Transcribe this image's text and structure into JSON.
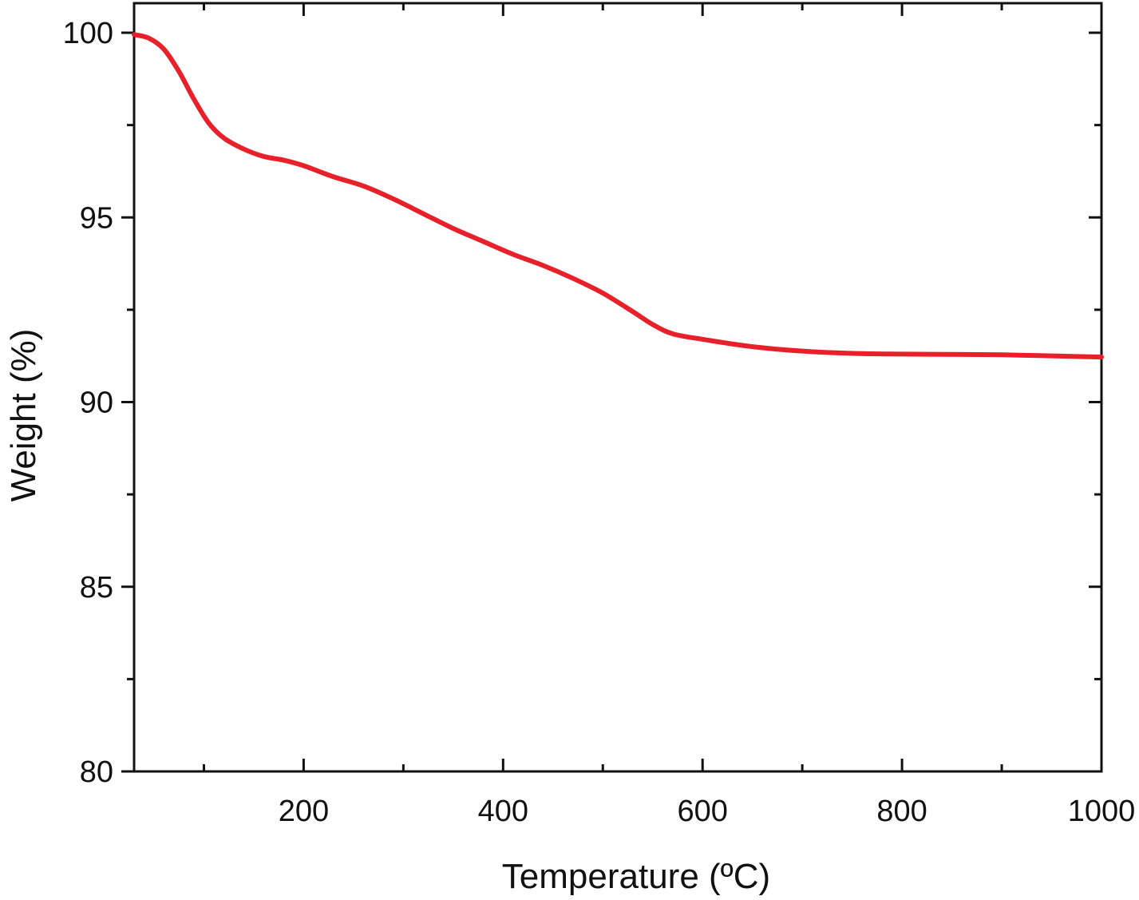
{
  "chart_data": {
    "type": "line",
    "title": "",
    "xlabel": "Temperature (ºC)",
    "ylabel": "Weight (%)",
    "xlim": [
      30,
      1000
    ],
    "ylim": [
      80,
      100.8
    ],
    "x_ticks": [
      200,
      400,
      600,
      800,
      1000
    ],
    "x_tick_labels": [
      "200",
      "400",
      "600",
      "800",
      "1000"
    ],
    "x_minor_ticks": [
      100,
      300,
      500,
      700,
      900
    ],
    "y_ticks": [
      80,
      85,
      90,
      95,
      100
    ],
    "y_tick_labels": [
      "80",
      "85",
      "90",
      "95",
      "100"
    ],
    "y_minor_ticks": [
      82.5,
      87.5,
      92.5,
      97.5
    ],
    "grid": false,
    "legend": "none",
    "series": [
      {
        "color": "#e8202a",
        "x": [
          30,
          45,
          60,
          75,
          90,
          105,
          120,
          140,
          160,
          180,
          200,
          230,
          260,
          290,
          320,
          350,
          380,
          410,
          440,
          470,
          500,
          530,
          550,
          570,
          600,
          650,
          700,
          750,
          800,
          900,
          1000
        ],
        "y": [
          99.95,
          99.85,
          99.55,
          98.95,
          98.2,
          97.55,
          97.15,
          96.85,
          96.65,
          96.55,
          96.4,
          96.1,
          95.85,
          95.5,
          95.1,
          94.7,
          94.35,
          94.0,
          93.7,
          93.35,
          92.95,
          92.45,
          92.1,
          91.85,
          91.7,
          91.5,
          91.38,
          91.32,
          91.3,
          91.28,
          91.22
        ]
      }
    ]
  }
}
